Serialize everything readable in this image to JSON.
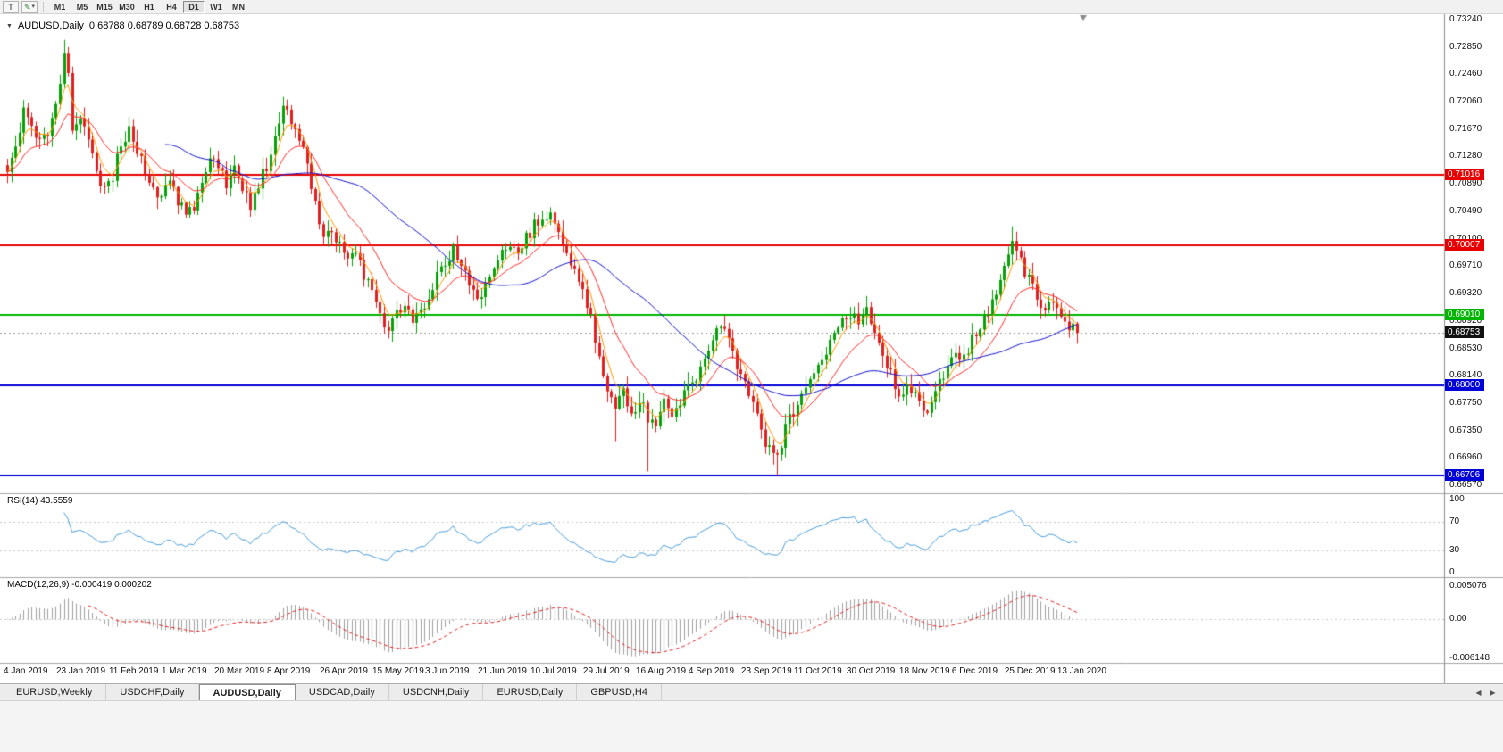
{
  "toolbar": {
    "text_tool_label": "T",
    "drawing_tool_icon": "✎",
    "caret_icon": "▾",
    "timeframes": [
      "M1",
      "M5",
      "M15",
      "M30",
      "H1",
      "H4",
      "D1",
      "W1",
      "MN"
    ],
    "active_timeframe": "D1"
  },
  "chart": {
    "symbol_dropdown_icon": "▼",
    "title": "AUDUSD,Daily",
    "ohlc": "0.68788 0.68789 0.68728 0.68753"
  },
  "chart_data": {
    "type": "candlestick",
    "symbol": "AUDUSD",
    "timeframe": "Daily",
    "bars": 265,
    "bars_per_x_label": 13,
    "ylim": [
      0.6657,
      0.7324
    ],
    "x_labels": [
      "4 Jan 2019",
      "23 Jan 2019",
      "11 Feb 2019",
      "1 Mar 2019",
      "20 Mar 2019",
      "8 Apr 2019",
      "26 Apr 2019",
      "15 May 2019",
      "3 Jun 2019",
      "21 Jun 2019",
      "10 Jul 2019",
      "29 Jul 2019",
      "16 Aug 2019",
      "4 Sep 2019",
      "23 Sep 2019",
      "11 Oct 2019",
      "30 Oct 2019",
      "18 Nov 2019",
      "6 Dec 2019",
      "25 Dec 2019",
      "13 Jan 2020"
    ],
    "price_axis_labels": [
      "0.73240",
      "0.72850",
      "0.72460",
      "0.72060",
      "0.71670",
      "0.71280",
      "0.70890",
      "0.70490",
      "0.70100",
      "0.69710",
      "0.69320",
      "0.68920",
      "0.68530",
      "0.68140",
      "0.67750",
      "0.67350",
      "0.66960",
      "0.66570"
    ],
    "close_anchors": [
      [
        0,
        0.7115
      ],
      [
        2,
        0.714
      ],
      [
        4,
        0.72
      ],
      [
        6,
        0.7175
      ],
      [
        8,
        0.715
      ],
      [
        10,
        0.7165
      ],
      [
        12,
        0.7195
      ],
      [
        14,
        0.728
      ],
      [
        15,
        0.724
      ],
      [
        16,
        0.717
      ],
      [
        18,
        0.719
      ],
      [
        20,
        0.716
      ],
      [
        22,
        0.7105
      ],
      [
        24,
        0.7085
      ],
      [
        26,
        0.71
      ],
      [
        28,
        0.7145
      ],
      [
        30,
        0.7165
      ],
      [
        32,
        0.714
      ],
      [
        34,
        0.711
      ],
      [
        36,
        0.7085
      ],
      [
        38,
        0.707
      ],
      [
        40,
        0.709
      ],
      [
        42,
        0.7065
      ],
      [
        44,
        0.704
      ],
      [
        46,
        0.706
      ],
      [
        48,
        0.709
      ],
      [
        50,
        0.7125
      ],
      [
        52,
        0.711
      ],
      [
        54,
        0.709
      ],
      [
        56,
        0.7115
      ],
      [
        58,
        0.708
      ],
      [
        60,
        0.706
      ],
      [
        62,
        0.709
      ],
      [
        64,
        0.7115
      ],
      [
        66,
        0.715
      ],
      [
        68,
        0.72
      ],
      [
        70,
        0.7175
      ],
      [
        72,
        0.715
      ],
      [
        74,
        0.712
      ],
      [
        76,
        0.706
      ],
      [
        78,
        0.7015
      ],
      [
        80,
        0.702
      ],
      [
        82,
        0.7005
      ],
      [
        84,
        0.6985
      ],
      [
        86,
        0.6995
      ],
      [
        88,
        0.696
      ],
      [
        90,
        0.6935
      ],
      [
        92,
        0.6895
      ],
      [
        94,
        0.6875
      ],
      [
        96,
        0.69
      ],
      [
        98,
        0.692
      ],
      [
        100,
        0.6885
      ],
      [
        102,
        0.6905
      ],
      [
        104,
        0.693
      ],
      [
        106,
        0.696
      ],
      [
        108,
        0.6975
      ],
      [
        110,
        0.6995
      ],
      [
        112,
        0.6975
      ],
      [
        114,
        0.695
      ],
      [
        116,
        0.6925
      ],
      [
        118,
        0.694
      ],
      [
        120,
        0.697
      ],
      [
        122,
        0.6995
      ],
      [
        124,
        0.7005
      ],
      [
        126,
        0.699
      ],
      [
        128,
        0.701
      ],
      [
        130,
        0.703
      ],
      [
        132,
        0.704
      ],
      [
        134,
        0.7045
      ],
      [
        136,
        0.702
      ],
      [
        138,
        0.699
      ],
      [
        140,
        0.696
      ],
      [
        142,
        0.693
      ],
      [
        144,
        0.6895
      ],
      [
        146,
        0.684
      ],
      [
        148,
        0.679
      ],
      [
        150,
        0.6775
      ],
      [
        152,
        0.6795
      ],
      [
        154,
        0.676
      ],
      [
        156,
        0.678
      ],
      [
        158,
        0.6755
      ],
      [
        160,
        0.674
      ],
      [
        162,
        0.6775
      ],
      [
        164,
        0.676
      ],
      [
        166,
        0.6775
      ],
      [
        168,
        0.6795
      ],
      [
        170,
        0.6815
      ],
      [
        172,
        0.6845
      ],
      [
        174,
        0.687
      ],
      [
        176,
        0.6885
      ],
      [
        178,
        0.686
      ],
      [
        180,
        0.683
      ],
      [
        182,
        0.68
      ],
      [
        184,
        0.677
      ],
      [
        186,
        0.6735
      ],
      [
        188,
        0.6705
      ],
      [
        190,
        0.67
      ],
      [
        192,
        0.674
      ],
      [
        194,
        0.676
      ],
      [
        196,
        0.678
      ],
      [
        198,
        0.6805
      ],
      [
        200,
        0.683
      ],
      [
        202,
        0.685
      ],
      [
        204,
        0.6875
      ],
      [
        206,
        0.6895
      ],
      [
        208,
        0.6905
      ],
      [
        210,
        0.689
      ],
      [
        212,
        0.6905
      ],
      [
        214,
        0.6875
      ],
      [
        216,
        0.6845
      ],
      [
        218,
        0.6815
      ],
      [
        220,
        0.679
      ],
      [
        222,
        0.68
      ],
      [
        224,
        0.6785
      ],
      [
        226,
        0.6765
      ],
      [
        228,
        0.6775
      ],
      [
        230,
        0.68
      ],
      [
        232,
        0.682
      ],
      [
        234,
        0.6845
      ],
      [
        236,
        0.684
      ],
      [
        238,
        0.6865
      ],
      [
        240,
        0.6885
      ],
      [
        242,
        0.6905
      ],
      [
        244,
        0.693
      ],
      [
        246,
        0.697
      ],
      [
        248,
        0.7
      ],
      [
        250,
        0.698
      ],
      [
        252,
        0.695
      ],
      [
        254,
        0.6925
      ],
      [
        256,
        0.6905
      ],
      [
        258,
        0.6925
      ],
      [
        260,
        0.6905
      ],
      [
        262,
        0.6885
      ],
      [
        264,
        0.68753
      ]
    ],
    "wick_overrides": {
      "14": {
        "high": 0.7295
      },
      "68": {
        "high": 0.7207
      },
      "150": {
        "low": 0.672
      },
      "158": {
        "low": 0.6677
      },
      "190": {
        "low": 0.6671
      },
      "248": {
        "high": 0.7028
      }
    },
    "levels": [
      {
        "price": 0.71016,
        "label": "0.71016",
        "color": "#e60000",
        "width": 2
      },
      {
        "price": 0.70007,
        "label": "0.70007",
        "color": "#e60000",
        "width": 2
      },
      {
        "price": 0.6901,
        "label": "0.69010",
        "color": "#00b400",
        "width": 2
      },
      {
        "price": 0.68,
        "label": "0.68000",
        "color": "#0000d8",
        "width": 2
      },
      {
        "price": 0.66706,
        "label": "0.66706",
        "color": "#0000d8",
        "width": 2
      }
    ],
    "current_price": {
      "value": 0.68753,
      "label": "0.68753",
      "badge_color": "#111111"
    },
    "colors": {
      "up": "#08a008",
      "down": "#e02020"
    },
    "moving_averages": [
      {
        "period": 5,
        "type": "ema",
        "color": "#ff9900"
      },
      {
        "period": 15,
        "type": "ema",
        "color": "#ff2a2a"
      },
      {
        "period": 40,
        "type": "sma",
        "color": "#1414cc"
      }
    ],
    "indicators": [
      {
        "name": "RSI",
        "label": "RSI(14) 43.5559",
        "period": 14,
        "value": "43.5559",
        "axis_labels": [
          "100",
          "70",
          "30",
          "0"
        ],
        "guide_levels": [
          70,
          30
        ],
        "range": [
          0,
          100
        ],
        "color": "#4a9edd"
      },
      {
        "name": "MACD",
        "label": "MACD(12,26,9) -0.000419 0.000202",
        "params": [
          12,
          26,
          9
        ],
        "main_value": "-0.000419",
        "signal_value": "0.000202",
        "axis_labels": [
          "0.005076",
          "0.00",
          "-0.006148"
        ],
        "range": [
          -0.006148,
          0.005076
        ],
        "histogram_color": "#a0a0a0",
        "signal_color": "#e02020"
      }
    ]
  },
  "tabs": {
    "items": [
      {
        "label": "EURUSD,Weekly",
        "active": false
      },
      {
        "label": "USDCHF,Daily",
        "active": false
      },
      {
        "label": "AUDUSD,Daily",
        "active": true
      },
      {
        "label": "USDCAD,Daily",
        "active": false
      },
      {
        "label": "USDCNH,Daily",
        "active": false
      },
      {
        "label": "EURUSD,Daily",
        "active": false
      },
      {
        "label": "GBPUSD,H4",
        "active": false
      }
    ],
    "scroll_left_icon": "◀",
    "scroll_right_icon": "▶"
  }
}
